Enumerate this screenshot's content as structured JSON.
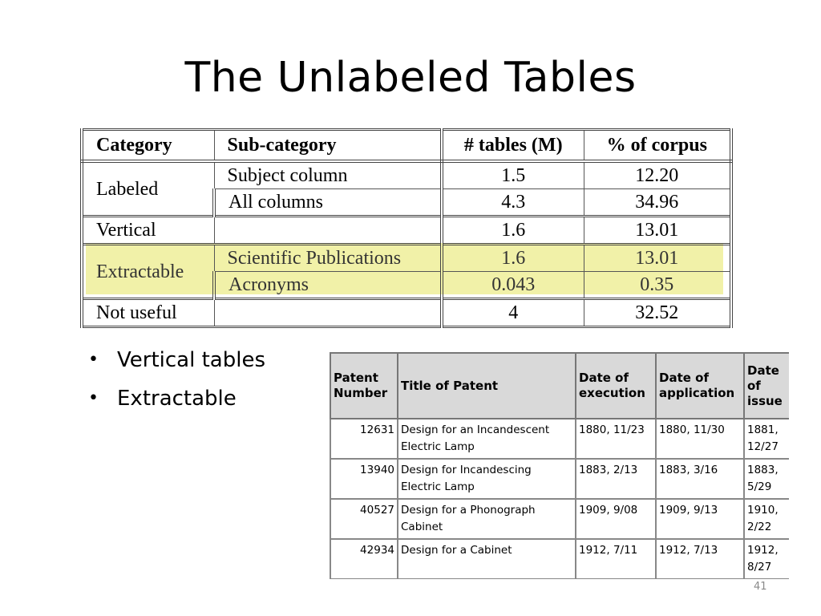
{
  "slide": {
    "title": "The Unlabeled Tables",
    "page_number": "41"
  },
  "corpus_table": {
    "headers": [
      "Category",
      "Sub-category",
      "# tables (M)",
      "% of corpus"
    ],
    "rows": {
      "labeled": {
        "category": "Labeled"
      },
      "subject_column": {
        "subcategory": "Subject column",
        "tables": "1.5",
        "percent": "12.20"
      },
      "all_columns": {
        "subcategory": "All columns",
        "tables": "4.3",
        "percent": "34.96"
      },
      "vertical": {
        "category": "Vertical",
        "subcategory": "",
        "tables": "1.6",
        "percent": "13.01"
      },
      "extractable": {
        "category": "Extractable"
      },
      "scientific": {
        "subcategory": "Scientific Publications",
        "tables": "1.6",
        "percent": "13.01"
      },
      "acronyms": {
        "subcategory": "Acronyms",
        "tables": "0.043",
        "percent": "0.35"
      },
      "not_useful": {
        "category": "Not useful",
        "subcategory": "",
        "tables": "4",
        "percent": "32.52"
      }
    },
    "highlight_color": "#eeee99"
  },
  "bullets": [
    "Vertical tables",
    "Extractable"
  ],
  "patent_table": {
    "headers": {
      "number": "Patent Number",
      "title": "Title of Patent",
      "execution": "Date of execution",
      "application": "Date of application",
      "issue": "Date of issue"
    },
    "rows": [
      {
        "number": "12631",
        "title": "Design for an Incandescent Electric Lamp",
        "execution": "1880, 11/23",
        "application": "1880, 11/30",
        "issue": "1881, 12/27"
      },
      {
        "number": "13940",
        "title": "Design for Incandescing Electric Lamp",
        "execution": "1883, 2/13",
        "application": "1883, 3/16",
        "issue": "1883, 5/29"
      },
      {
        "number": "40527",
        "title": "Design for a Phonograph Cabinet",
        "execution": "1909, 9/08",
        "application": "1909, 9/13",
        "issue": "1910, 2/22"
      },
      {
        "number": "42934",
        "title": "Design for a Cabinet",
        "execution": "1912, 7/11",
        "application": "1912, 7/13",
        "issue": "1912, 8/27"
      }
    ],
    "header_bg": "#d9d9d9"
  }
}
